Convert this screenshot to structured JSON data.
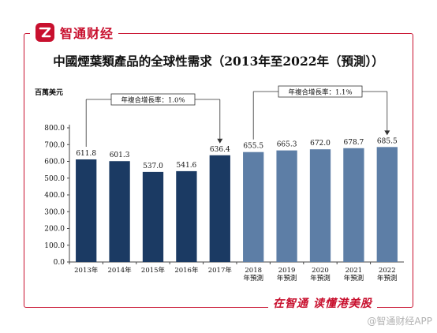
{
  "brand": {
    "name": "智通财经"
  },
  "footer": {
    "slogan": "在智通 读懂港美股",
    "watermark": "@智通财经APP"
  },
  "chart_data": {
    "type": "bar",
    "title": "中國煙葉類產品的全球性需求（2013年至2022年（預測））",
    "ylabel": "百萬美元",
    "ylim": [
      0,
      800
    ],
    "yticks": [
      "0.0",
      "100.0",
      "200.0",
      "300.0",
      "400.0",
      "500.0",
      "600.0",
      "700.0",
      "800.0"
    ],
    "categories": [
      "2013年",
      "2014年",
      "2015年",
      "2016年",
      "2017年",
      "2018年預測",
      "2019年預測",
      "2020年預測",
      "2021年預測",
      "2022年預測"
    ],
    "category_lines": [
      [
        "2013年"
      ],
      [
        "2014年"
      ],
      [
        "2015年"
      ],
      [
        "2016年"
      ],
      [
        "2017年"
      ],
      [
        "2018",
        "年預測"
      ],
      [
        "2019",
        "年預測"
      ],
      [
        "2020",
        "年預測"
      ],
      [
        "2021",
        "年預測"
      ],
      [
        "2022",
        "年預測"
      ]
    ],
    "values": [
      611.8,
      601.3,
      537.0,
      541.6,
      636.4,
      655.5,
      665.3,
      672.0,
      678.7,
      685.5
    ],
    "value_labels": [
      "611.8",
      "601.3",
      "537.0",
      "541.6",
      "636.4",
      "655.5",
      "665.3",
      "672.0",
      "678.7",
      "685.5"
    ],
    "colors": {
      "historical": "#1b3a63",
      "forecast": "#5d7ea6"
    },
    "forecast_start_index": 5,
    "cagr_annotations": [
      {
        "label": "年複合增長率：1.0%",
        "from_index": 0,
        "to_index": 4
      },
      {
        "label": "年複合增長率：1.1%",
        "from_index": 5,
        "to_index": 9
      }
    ],
    "grid": false,
    "legend": "none"
  }
}
